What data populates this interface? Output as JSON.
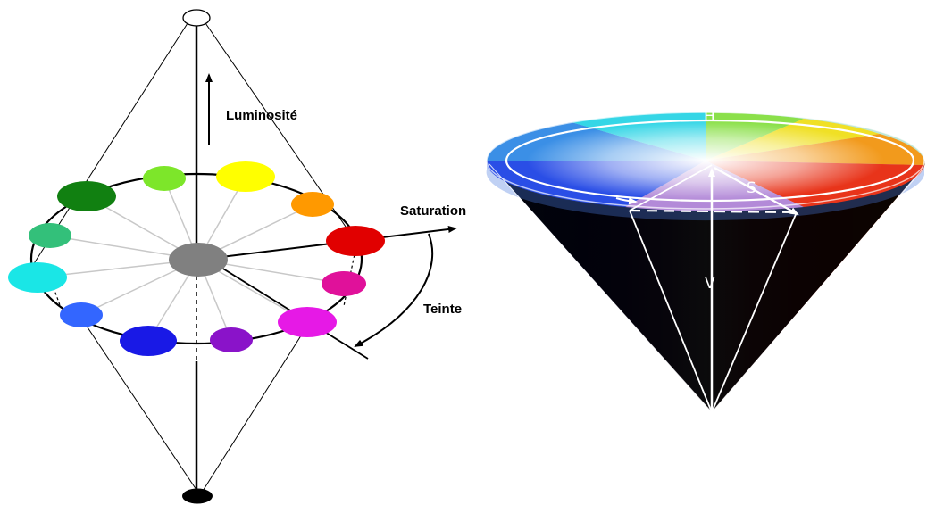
{
  "left_diagram": {
    "labels": {
      "luminosity": "Luminosité",
      "saturation": "Saturation",
      "hue": "Teinte"
    },
    "top_pole_color": "#ffffff",
    "bottom_pole_color": "#000000",
    "center_color": "#808080",
    "hue_swatches": [
      {
        "name": "red",
        "color": "#e10000"
      },
      {
        "name": "magenta-rose",
        "color": "#e0119a"
      },
      {
        "name": "magenta",
        "color": "#e619e6"
      },
      {
        "name": "violet",
        "color": "#8a13c9"
      },
      {
        "name": "blue",
        "color": "#1919e6"
      },
      {
        "name": "azure",
        "color": "#3366ff"
      },
      {
        "name": "cyan",
        "color": "#1ae6e6"
      },
      {
        "name": "spring-green",
        "color": "#33c07a"
      },
      {
        "name": "green",
        "color": "#118011"
      },
      {
        "name": "chartreuse",
        "color": "#7de62a"
      },
      {
        "name": "yellow",
        "color": "#ffff00"
      },
      {
        "name": "orange",
        "color": "#ff9900"
      }
    ]
  },
  "right_diagram": {
    "labels": {
      "h": "H",
      "s": "S",
      "v": "V"
    }
  }
}
